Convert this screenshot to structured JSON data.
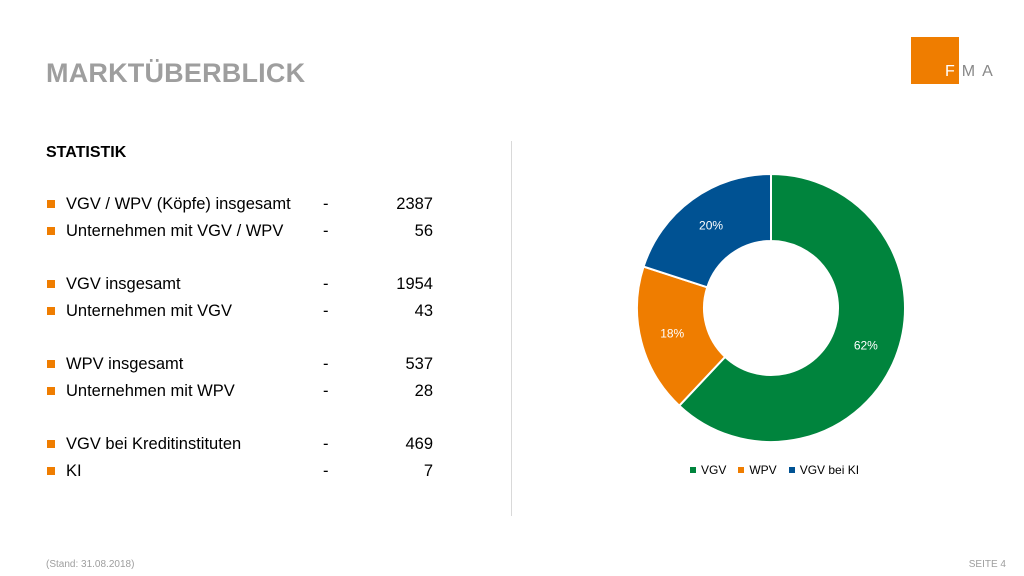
{
  "header": {
    "title": "MARKTÜBERBLICK",
    "logo": {
      "letter_f": "F",
      "letters_rest": "MA",
      "box_color": "#ef7d00"
    }
  },
  "section_heading": "STATISTIK",
  "stats": [
    {
      "label": "VGV / WPV (Köpfe) insgesamt",
      "dash": "-",
      "value": "2387"
    },
    {
      "label": "Unternehmen mit VGV / WPV",
      "dash": "-",
      "value": "56"
    },
    {
      "label": "VGV insgesamt",
      "dash": "-",
      "value": "1954"
    },
    {
      "label": "Unternehmen mit VGV",
      "dash": "-",
      "value": "43"
    },
    {
      "label": "WPV insgesamt",
      "dash": "-",
      "value": "537"
    },
    {
      "label": "Unternehmen mit WPV",
      "dash": "-",
      "value": "28"
    },
    {
      "label": "VGV bei Kreditinstituten",
      "dash": "-",
      "value": "469"
    },
    {
      "label": "KI",
      "dash": "-",
      "value": "7"
    }
  ],
  "chart_data": {
    "type": "pie",
    "donut": true,
    "title": "",
    "categories": [
      "VGV",
      "WPV",
      "VGV bei KI"
    ],
    "values": [
      62,
      18,
      20
    ],
    "value_labels": [
      "62%",
      "18%",
      "20%"
    ],
    "colors": [
      "#00843d",
      "#ef7d00",
      "#005293"
    ],
    "legend": "bottom"
  },
  "footer": {
    "stand": "(Stand: 31.08.2018)",
    "page": "SEITE 4"
  }
}
